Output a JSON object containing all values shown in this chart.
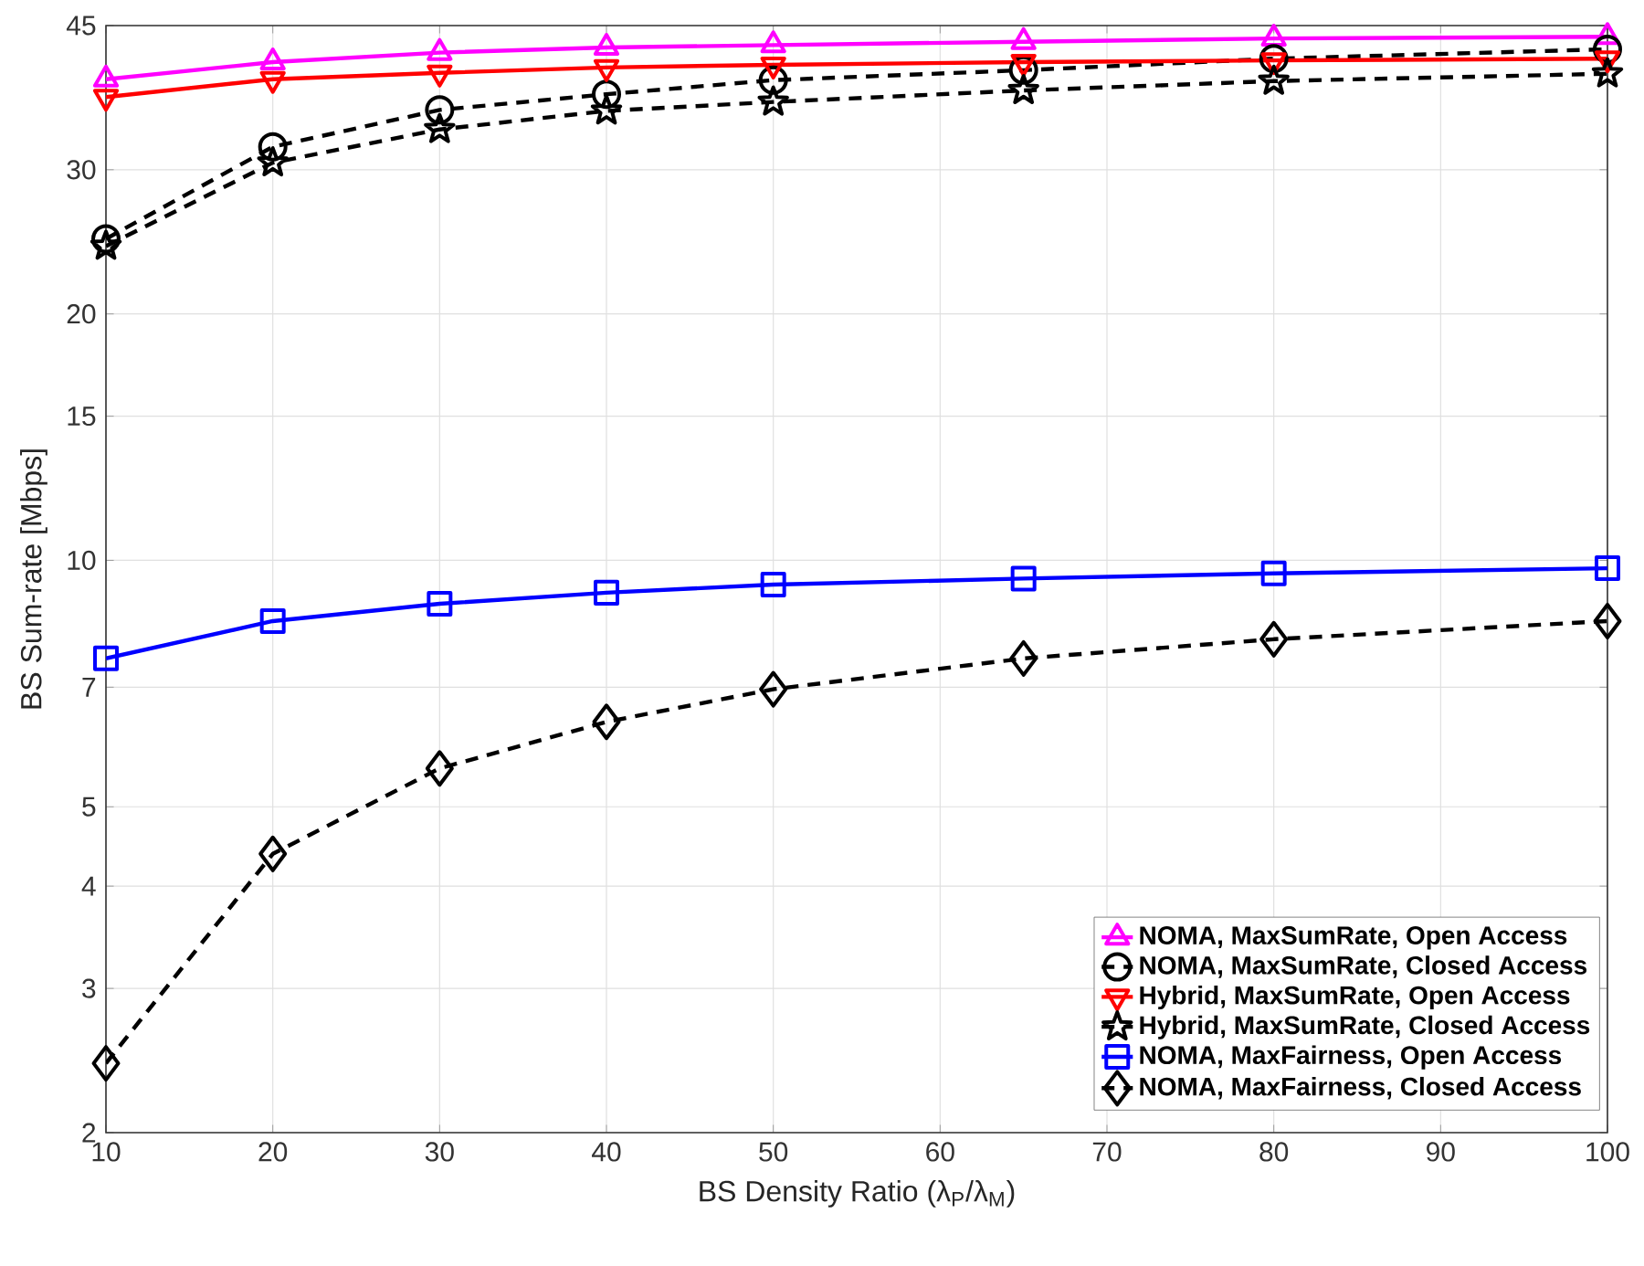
{
  "chart_data": {
    "type": "line",
    "xlabel": "BS Density Ratio (λ$_{P}$/λ$_{M}$)",
    "ylabel": "BS Sum-rate [Mbps]",
    "x": [
      10,
      20,
      30,
      40,
      50,
      65,
      80,
      100
    ],
    "log": "y",
    "grid": true,
    "legend": "bottom right",
    "xlim": [
      10,
      100
    ],
    "ylim": [
      2,
      45
    ],
    "xticks": [
      10,
      20,
      30,
      40,
      50,
      60,
      70,
      80,
      90,
      100
    ],
    "yticks": [
      2,
      3,
      4,
      5,
      7,
      10,
      15,
      20,
      30,
      45
    ],
    "series": [
      {
        "name": "NOMA, MaxSumRate, Open Access",
        "color": "#ff00ff",
        "marker": "triangle",
        "line_style": "solid",
        "values": [
          38.7,
          40.6,
          41.7,
          42.3,
          42.6,
          43.0,
          43.4,
          43.6
        ]
      },
      {
        "name": "NOMA, MaxSumRate, Closed Access",
        "color": "#000000",
        "marker": "circle",
        "line_style": "dashed",
        "values": [
          24.7,
          32.0,
          35.5,
          37.1,
          38.6,
          39.7,
          41.0,
          42.1
        ]
      },
      {
        "name": "Hybrid, MaxSumRate, Open Access",
        "color": "#ff0000",
        "marker": "triangle_down",
        "line_style": "solid",
        "values": [
          36.8,
          38.7,
          39.4,
          40.0,
          40.3,
          40.6,
          40.8,
          41.0
        ]
      },
      {
        "name": "Hybrid, MaxSumRate, Closed Access",
        "color": "#000000",
        "marker": "star",
        "line_style": "dashed",
        "values": [
          24.2,
          30.6,
          33.6,
          35.4,
          36.3,
          37.5,
          38.5,
          39.3
        ]
      },
      {
        "name": "NOMA, MaxFairness, Open Access",
        "color": "#0000ff",
        "marker": "square",
        "line_style": "solid",
        "values": [
          7.59,
          8.43,
          8.85,
          9.13,
          9.34,
          9.5,
          9.64,
          9.78
        ]
      },
      {
        "name": "NOMA, MaxFairness, Closed Access",
        "color": "#000000",
        "marker": "diamond",
        "line_style": "dashed",
        "values": [
          2.43,
          4.38,
          5.57,
          6.35,
          6.96,
          7.59,
          8.01,
          8.43
        ]
      }
    ]
  }
}
